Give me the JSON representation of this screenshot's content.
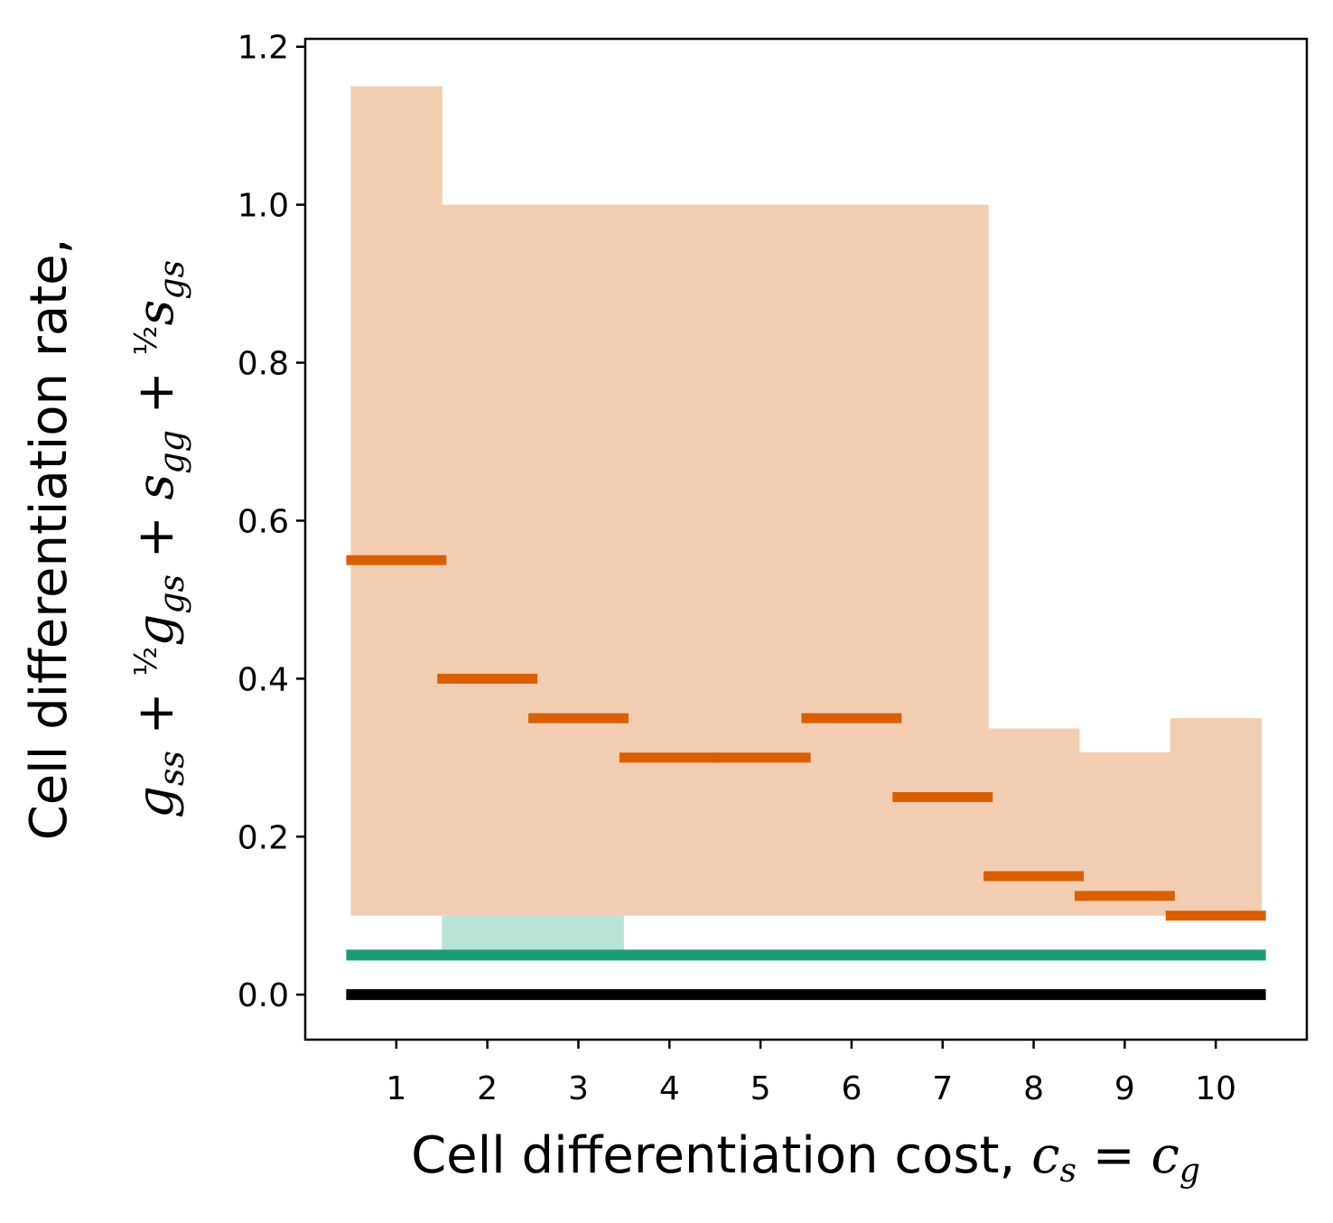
{
  "chart_data": {
    "type": "bar",
    "x": [
      1,
      2,
      3,
      4,
      5,
      6,
      7,
      8,
      9,
      10
    ],
    "xlim": [
      0.0,
      11.0
    ],
    "ylim": [
      -0.057,
      1.21
    ],
    "xticks": [
      1,
      2,
      3,
      4,
      5,
      6,
      7,
      8,
      9,
      10
    ],
    "yticks": [
      0.0,
      0.2,
      0.4,
      0.6,
      0.8,
      1.0,
      1.2
    ],
    "ytick_labels": [
      "0.0",
      "0.2",
      "0.4",
      "0.6",
      "0.8",
      "1.0",
      "1.2"
    ],
    "xlabel": {
      "text": "Cell differentiation cost, ",
      "math": "c_s = c_g"
    },
    "ylabel": {
      "line1": "Cell differentiation rate,",
      "math": "g_ss + ½ g_gs + s_gg + ½ s_gs"
    },
    "grid": false,
    "orange_range": {
      "color": "#f2cdb2",
      "low": [
        0.1,
        0.1,
        0.1,
        0.1,
        0.1,
        0.1,
        0.1,
        0.1,
        0.1,
        0.1
      ],
      "high": [
        1.15,
        1.0,
        1.0,
        1.0,
        1.0,
        1.0,
        1.0,
        0.337,
        0.307,
        0.35
      ]
    },
    "green_range": {
      "color": "#bae3d8",
      "x_from": 1.5,
      "x_to": 3.5,
      "low": 0.05,
      "high": 0.1
    },
    "orange_values": {
      "color": "#d95f02",
      "values": [
        0.55,
        0.4,
        0.35,
        0.3,
        0.3,
        0.35,
        0.25,
        0.15,
        0.125,
        0.1
      ]
    },
    "green_line": {
      "color": "#1b9e77",
      "value": 0.05
    },
    "black_line": {
      "color": "#000000",
      "value": 0.0
    }
  }
}
